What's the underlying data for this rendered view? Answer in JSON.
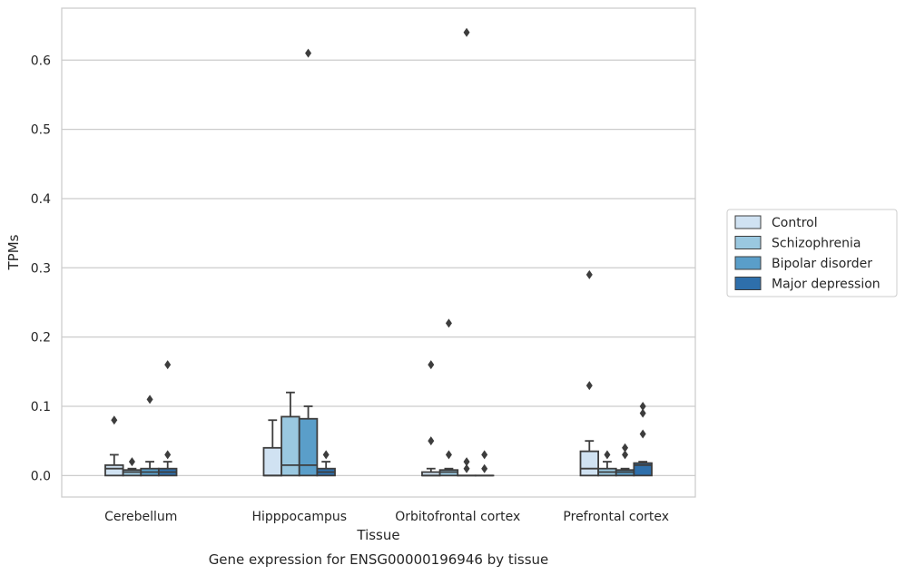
{
  "chart_data": {
    "type": "box",
    "xlabel": "Tissue",
    "ylabel": "TPMs",
    "caption": "Gene expression for ENSG00000196946 by tissue",
    "ylim": [
      -0.031,
      0.675
    ],
    "yticks": [
      "0.0",
      "0.1",
      "0.2",
      "0.3",
      "0.4",
      "0.5",
      "0.6"
    ],
    "grid": "horizontal",
    "legend_position": "right",
    "categories": [
      "Cerebellum",
      "Hipppocampus",
      "Orbitofrontal cortex",
      "Prefrontal cortex"
    ],
    "series": [
      {
        "name": "Control",
        "color": "#d0e2f2",
        "boxes": [
          {
            "q1": 0.0,
            "median": 0.01,
            "q3": 0.015,
            "whislo": 0.0,
            "whishi": 0.03,
            "fliers": [
              0.08
            ]
          },
          {
            "q1": 0.0,
            "median": 0.0,
            "q3": 0.04,
            "whislo": 0.0,
            "whishi": 0.08,
            "fliers": []
          },
          {
            "q1": 0.0,
            "median": 0.0,
            "q3": 0.005,
            "whislo": 0.0,
            "whishi": 0.01,
            "fliers": [
              0.05,
              0.16
            ]
          },
          {
            "q1": 0.0,
            "median": 0.01,
            "q3": 0.035,
            "whislo": 0.0,
            "whishi": 0.05,
            "fliers": [
              0.13,
              0.29
            ]
          }
        ]
      },
      {
        "name": "Schizophrenia",
        "color": "#9ac8e0",
        "boxes": [
          {
            "q1": 0.0,
            "median": 0.005,
            "q3": 0.008,
            "whislo": 0.0,
            "whishi": 0.01,
            "fliers": [
              0.02
            ]
          },
          {
            "q1": 0.0,
            "median": 0.015,
            "q3": 0.085,
            "whislo": 0.0,
            "whishi": 0.12,
            "fliers": []
          },
          {
            "q1": 0.0,
            "median": 0.005,
            "q3": 0.008,
            "whislo": 0.0,
            "whishi": 0.01,
            "fliers": [
              0.03,
              0.22
            ]
          },
          {
            "q1": 0.0,
            "median": 0.005,
            "q3": 0.01,
            "whislo": 0.0,
            "whishi": 0.02,
            "fliers": [
              0.03
            ]
          }
        ]
      },
      {
        "name": "Bipolar disorder",
        "color": "#5a9ec9",
        "boxes": [
          {
            "q1": 0.0,
            "median": 0.005,
            "q3": 0.01,
            "whislo": 0.0,
            "whishi": 0.02,
            "fliers": [
              0.11
            ]
          },
          {
            "q1": 0.0,
            "median": 0.015,
            "q3": 0.082,
            "whislo": 0.0,
            "whishi": 0.1,
            "fliers": [
              0.61
            ]
          },
          {
            "q1": 0.0,
            "median": 0.0,
            "q3": 0.0,
            "whislo": 0.0,
            "whishi": 0.0,
            "fliers": [
              0.01,
              0.02,
              0.64
            ]
          },
          {
            "q1": 0.0,
            "median": 0.005,
            "q3": 0.008,
            "whislo": 0.0,
            "whishi": 0.01,
            "fliers": [
              0.03,
              0.04
            ]
          }
        ]
      },
      {
        "name": "Major depression",
        "color": "#2e6fab",
        "boxes": [
          {
            "q1": 0.0,
            "median": 0.005,
            "q3": 0.01,
            "whislo": 0.0,
            "whishi": 0.02,
            "fliers": [
              0.03,
              0.16
            ]
          },
          {
            "q1": 0.0,
            "median": 0.005,
            "q3": 0.01,
            "whislo": 0.0,
            "whishi": 0.02,
            "fliers": [
              0.03
            ]
          },
          {
            "q1": 0.0,
            "median": 0.0,
            "q3": 0.0,
            "whislo": 0.0,
            "whishi": 0.0,
            "fliers": [
              0.01,
              0.03
            ]
          },
          {
            "q1": 0.0,
            "median": 0.015,
            "q3": 0.018,
            "whislo": 0.0,
            "whishi": 0.02,
            "fliers": [
              0.06,
              0.09,
              0.1
            ]
          }
        ]
      }
    ]
  }
}
